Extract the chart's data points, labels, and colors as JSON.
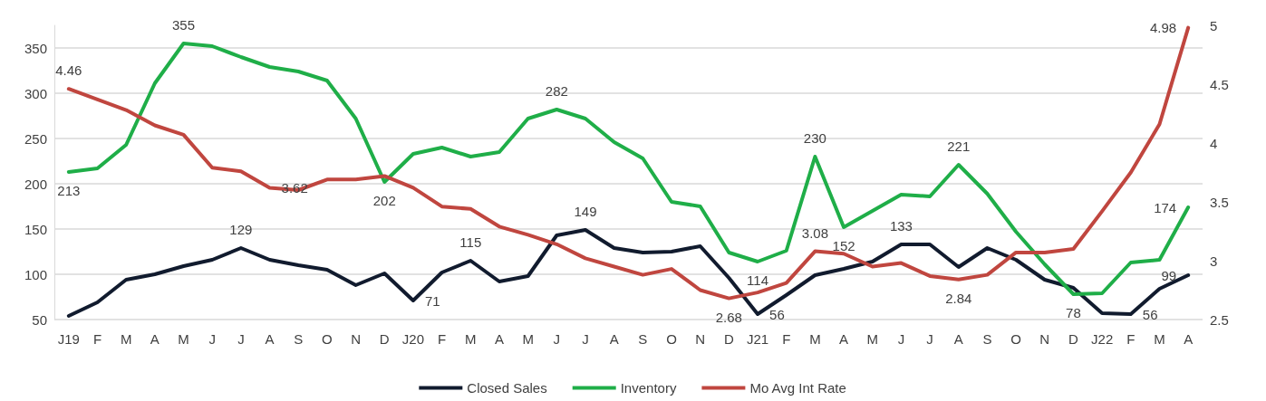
{
  "chart_data": {
    "type": "line",
    "categories": [
      "J19",
      "F",
      "M",
      "A",
      "M",
      "J",
      "J",
      "A",
      "S",
      "O",
      "N",
      "D",
      "J20",
      "F",
      "M",
      "A",
      "M",
      "J",
      "J",
      "A",
      "S",
      "O",
      "N",
      "D",
      "J21",
      "F",
      "M",
      "A",
      "M",
      "J",
      "J",
      "A",
      "S",
      "O",
      "N",
      "D",
      "J22",
      "F",
      "M",
      "A"
    ],
    "series": [
      {
        "name": "Closed Sales",
        "color": "#111b2e",
        "values": [
          54,
          69,
          94,
          100,
          109,
          116,
          129,
          116,
          110,
          105,
          88,
          101,
          71,
          102,
          115,
          92,
          98,
          143,
          149,
          129,
          124,
          125,
          131,
          96,
          56,
          77,
          99,
          106,
          114,
          133,
          133,
          108,
          129,
          116,
          94,
          85,
          57,
          56,
          84,
          99
        ],
        "value_labels": [
          null,
          null,
          null,
          null,
          null,
          null,
          "129",
          null,
          null,
          null,
          null,
          null,
          "71",
          null,
          "115",
          null,
          null,
          null,
          "149",
          null,
          null,
          null,
          null,
          null,
          "56",
          null,
          null,
          null,
          null,
          "133",
          null,
          null,
          null,
          null,
          null,
          null,
          null,
          "56",
          null,
          "99"
        ]
      },
      {
        "name": "Inventory",
        "color": "#1fae48",
        "values": [
          213,
          217,
          243,
          311,
          355,
          352,
          340,
          329,
          324,
          314,
          272,
          202,
          233,
          240,
          230,
          235,
          272,
          282,
          272,
          246,
          228,
          180,
          175,
          124,
          114,
          126,
          230,
          152,
          170,
          188,
          186,
          221,
          189,
          147,
          111,
          78,
          79,
          113,
          116,
          174
        ],
        "value_labels": [
          "213",
          null,
          null,
          null,
          "355",
          null,
          null,
          null,
          null,
          null,
          null,
          "202",
          null,
          null,
          null,
          null,
          null,
          "282",
          null,
          null,
          null,
          null,
          null,
          null,
          "114",
          null,
          "230",
          "152",
          null,
          null,
          null,
          "221",
          null,
          null,
          null,
          "78",
          null,
          null,
          null,
          "174"
        ]
      },
      {
        "name": "Mo Avg Int Rate",
        "color": "#c0463f",
        "axis": "y2",
        "values": [
          4.46,
          4.37,
          4.28,
          4.15,
          4.07,
          3.79,
          3.76,
          3.62,
          3.6,
          3.69,
          3.69,
          3.72,
          3.62,
          3.46,
          3.44,
          3.29,
          3.22,
          3.14,
          3.02,
          2.95,
          2.88,
          2.93,
          2.75,
          2.68,
          2.73,
          2.81,
          3.08,
          3.06,
          2.95,
          2.98,
          2.87,
          2.84,
          2.88,
          3.07,
          3.07,
          3.1,
          3.42,
          3.75,
          4.16,
          4.98
        ],
        "value_labels": [
          "4.46",
          null,
          null,
          null,
          null,
          null,
          null,
          "3.62",
          null,
          null,
          null,
          null,
          null,
          null,
          null,
          null,
          null,
          null,
          null,
          null,
          null,
          null,
          null,
          "2.68",
          null,
          null,
          "3.08",
          null,
          null,
          null,
          null,
          "2.84",
          null,
          null,
          null,
          null,
          null,
          null,
          null,
          "4.98"
        ]
      }
    ],
    "ylim": [
      50,
      375
    ],
    "yticks": [
      50,
      100,
      150,
      200,
      250,
      300,
      350
    ],
    "y2lim": [
      2.5,
      5
    ],
    "y2ticks": [
      2.5,
      3,
      3.5,
      4,
      4.5,
      5
    ],
    "grid": "y",
    "legend": "bottom",
    "marker": "none",
    "line_style": "solid"
  }
}
